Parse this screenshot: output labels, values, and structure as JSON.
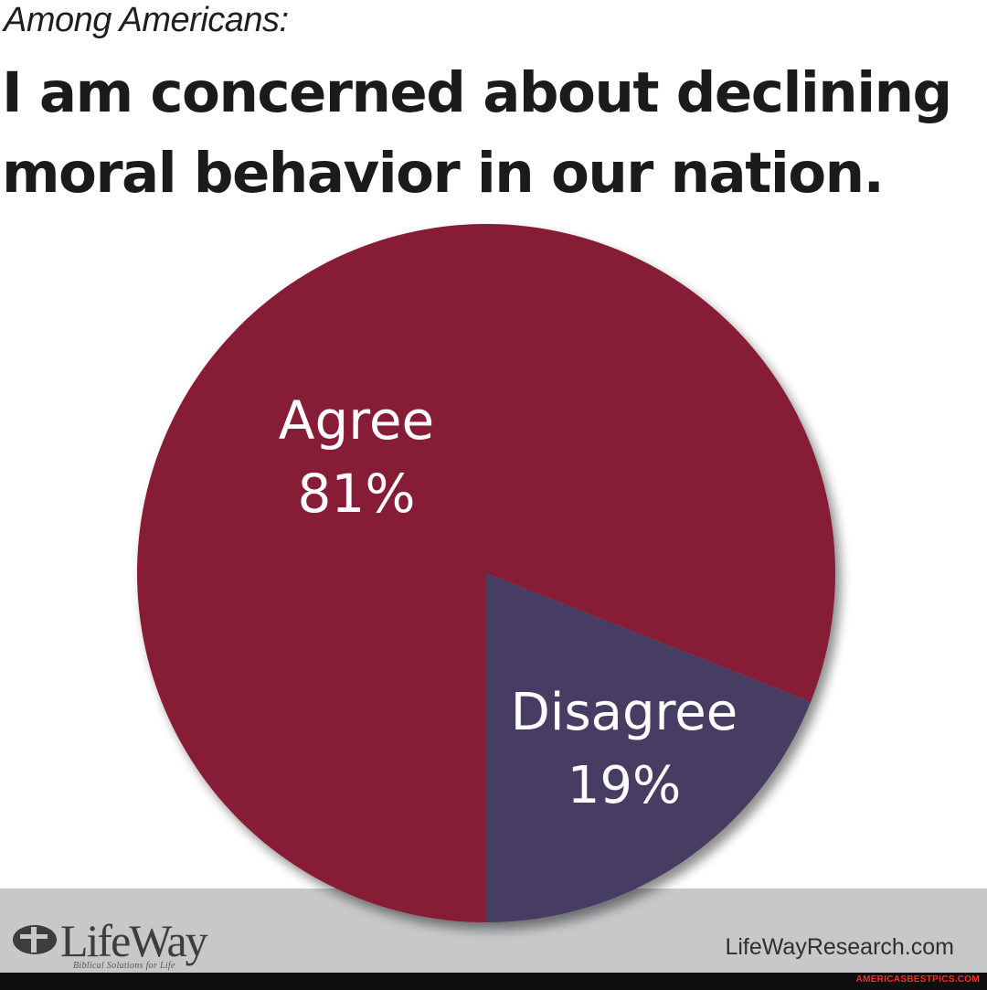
{
  "header": {
    "kicker": "Among Americans:",
    "headline_line1": "I am concerned about declining",
    "headline_line2": "moral behavior in our nation."
  },
  "chart_data": {
    "type": "pie",
    "slices": [
      {
        "label": "Agree",
        "value": 81,
        "value_label": "81%",
        "color": "#861e35"
      },
      {
        "label": "Disagree",
        "value": 19,
        "value_label": "19%",
        "color": "#463d63"
      }
    ]
  },
  "footer": {
    "logo_text": "LifeWay",
    "logo_tagline": "Biblical Solutions for Life",
    "site": "LifeWayResearch.com",
    "band_color": "#c7c8ca",
    "watermark": "AMERICASBESTPICS.COM"
  }
}
